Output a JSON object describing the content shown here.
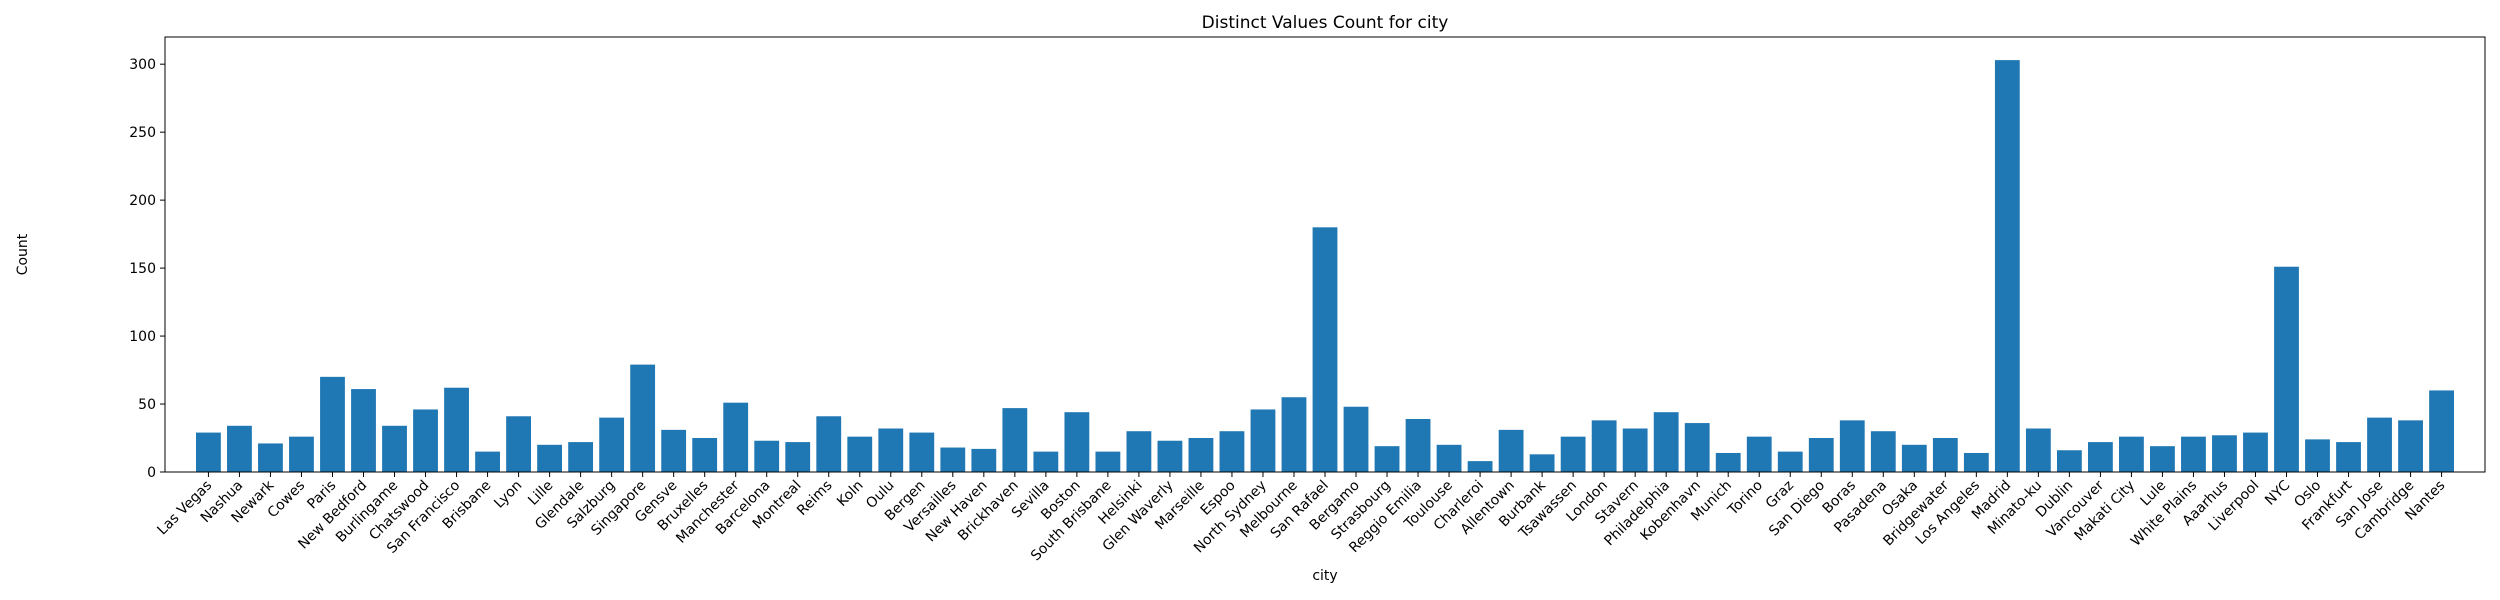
{
  "chart_data": {
    "type": "bar",
    "title": "Distinct Values Count for city",
    "xlabel": "city",
    "ylabel": "Count",
    "ylim": [
      0,
      320
    ],
    "yticks": [
      0,
      50,
      100,
      150,
      200,
      250,
      300
    ],
    "grid": false,
    "bar_color": "#1f77b4",
    "categories": [
      "Las Vegas",
      "Nashua",
      "Newark",
      "Cowes",
      "Paris",
      "New Bedford",
      "Burlingame",
      "Chatswood",
      "San Francisco",
      "Brisbane",
      "Lyon",
      "Lille",
      "Glendale",
      "Salzburg",
      "Singapore",
      "Gensve",
      "Bruxelles",
      "Manchester",
      "Barcelona",
      "Montreal",
      "Reims",
      "Koln",
      "Oulu",
      "Bergen",
      "Versailles",
      "New Haven",
      "Brickhaven",
      "Sevilla",
      "Boston",
      "South Brisbane",
      "Helsinki",
      "Glen Waverly",
      "Marseille",
      "Espoo",
      "North Sydney",
      "Melbourne",
      "San Rafael",
      "Bergamo",
      "Strasbourg",
      "Reggio Emilia",
      "Toulouse",
      "Charleroi",
      "Allentown",
      "Burbank",
      "Tsawassen",
      "London",
      "Stavern",
      "Philadelphia",
      "Kobenhavn",
      "Munich",
      "Torino",
      "Graz",
      "San Diego",
      "Boras",
      "Pasadena",
      "Osaka",
      "Bridgewater",
      "Los Angeles",
      "Madrid",
      "Minato-ku",
      "Dublin",
      "Vancouver",
      "Makati City",
      "Lule",
      "White Plains",
      "Aaarhus",
      "Liverpool",
      "NYC",
      "Oslo",
      "Frankfurt",
      "San Jose",
      "Cambridge",
      "Nantes"
    ],
    "values": [
      29,
      34,
      21,
      26,
      70,
      61,
      34,
      46,
      62,
      15,
      41,
      20,
      22,
      40,
      79,
      31,
      25,
      51,
      23,
      22,
      41,
      26,
      32,
      29,
      18,
      17,
      47,
      15,
      44,
      15,
      30,
      23,
      25,
      30,
      46,
      55,
      180,
      48,
      19,
      39,
      20,
      8,
      31,
      13,
      26,
      38,
      32,
      44,
      36,
      14,
      26,
      15,
      25,
      38,
      30,
      20,
      25,
      14,
      303,
      32,
      16,
      22,
      26,
      19,
      26,
      27,
      29,
      151,
      24,
      22,
      40,
      38,
      60
    ]
  }
}
